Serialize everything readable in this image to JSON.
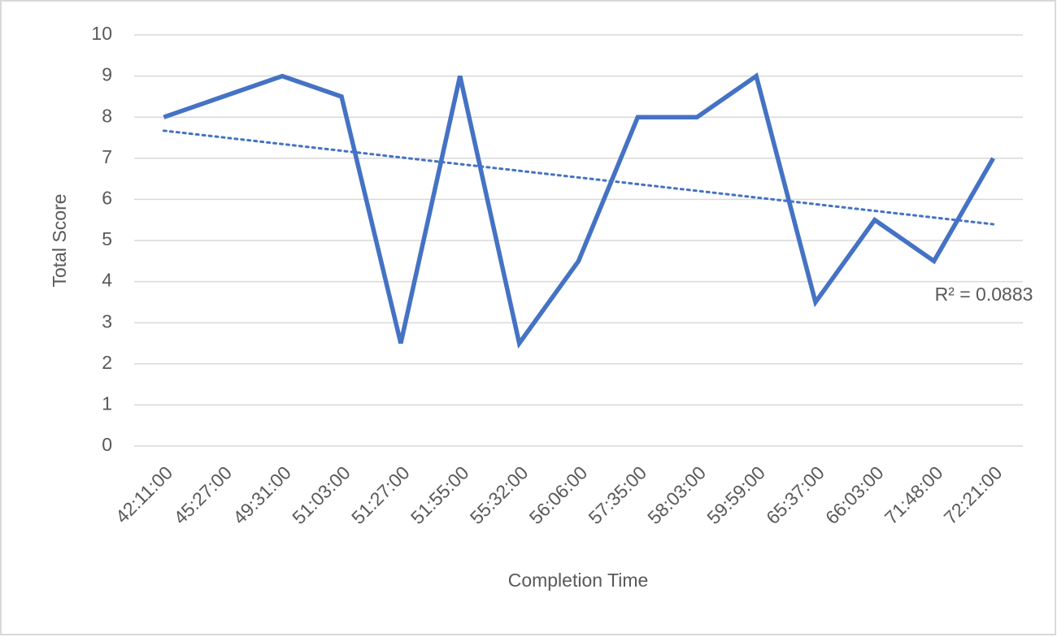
{
  "chart_data": {
    "type": "line",
    "x_label": "Completion Time",
    "y_label": "Total Score",
    "categories": [
      "42:11:00",
      "45:27:00",
      "49:31:00",
      "51:03:00",
      "51:27:00",
      "51:55:00",
      "55:32:00",
      "56:06:00",
      "57:35:00",
      "58:03:00",
      "59:59:00",
      "65:37:00",
      "66:03:00",
      "71:48:00",
      "72:21:00"
    ],
    "values": [
      8,
      8.5,
      9,
      8.5,
      2.5,
      9,
      2.5,
      4.5,
      8,
      8,
      9,
      3.5,
      5.5,
      4.5,
      7
    ],
    "color": "#4472c4",
    "ylim": [
      0,
      10
    ],
    "yticks": [
      0,
      1,
      2,
      3,
      4,
      5,
      6,
      7,
      8,
      9,
      10
    ],
    "grid": true,
    "trendline": "linear",
    "annotation": "R² = 0.0883"
  }
}
